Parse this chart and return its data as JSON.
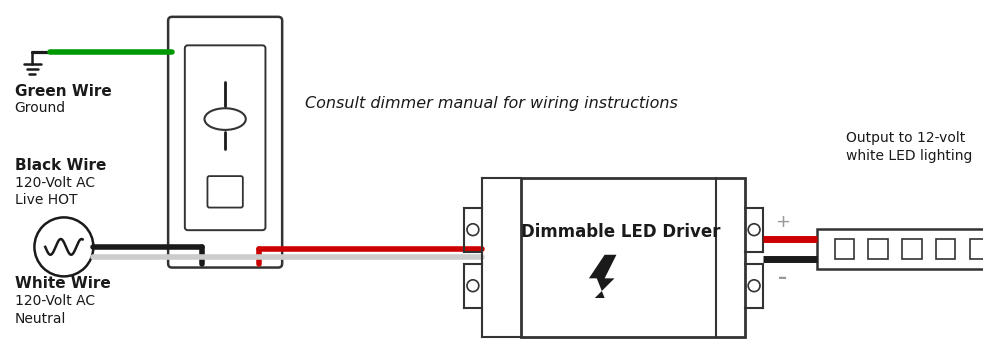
{
  "bg_color": "#ffffff",
  "title_italic": "Consult dimmer manual for wiring instructions",
  "green_wire_label": "Green Wire",
  "green_wire_sub": "Ground",
  "black_wire_label": "Black Wire",
  "black_wire_sub1": "120-Volt AC",
  "black_wire_sub2": "Live HOT",
  "white_wire_label": "White Wire",
  "white_wire_sub1": "120-Volt AC",
  "white_wire_sub2": "Neutral",
  "driver_label": "Dimmable LED Driver",
  "output_label": "Output to 12-volt\nwhite LED lighting",
  "plus_label": "+",
  "minus_label": "–",
  "green_color": "#009900",
  "black_color": "#1a1a1a",
  "red_color": "#cc0000",
  "white_color": "#ffffff",
  "gray_color": "#999999",
  "outline_color": "#333333",
  "light_gray": "#cccccc"
}
